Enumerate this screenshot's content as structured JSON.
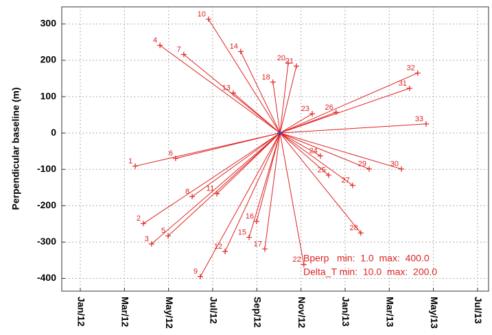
{
  "chart_data": {
    "type": "scatter",
    "y_label": "Perpendicular baseline (m)",
    "x": [
      2.49,
      2.86,
      3.23,
      3.61,
      3.98,
      4.32,
      4.69,
      5.07,
      5.44,
      5.81,
      6.19,
      6.56,
      6.93,
      7.27,
      7.65,
      7.99,
      8.36,
      8.73,
      9.42,
      9.79,
      10.13,
      10.51,
      10.88,
      11.25,
      11.59,
      12.34,
      12.71,
      13.09,
      14.55,
      14.92,
      15.29,
      15.67
    ],
    "values": [
      -91,
      -249,
      -305,
      241,
      -283,
      -70,
      216,
      -175,
      -395,
      313,
      -167,
      -326,
      110,
      224,
      -287,
      -243,
      -319,
      140,
      192,
      184,
      -362,
      53,
      -63,
      -116,
      57,
      -144,
      -275,
      -99,
      -99,
      123,
      165,
      25
    ],
    "point_labels": [
      "1",
      "2",
      "3",
      "4",
      "5",
      "6",
      "7",
      "8",
      "9",
      "10",
      "11",
      "12",
      "13",
      "14",
      "15",
      "16",
      "17",
      "18",
      "20",
      "21",
      "22",
      "23",
      "24",
      "25",
      "26",
      "27",
      "28",
      "29",
      "30",
      "31",
      "32",
      "33"
    ],
    "color": "#e02020",
    "reference": {
      "x": 9.05,
      "y": 0,
      "color": "#2040e0"
    },
    "xlim": [
      -0.84,
      18.5
    ],
    "ylim": [
      -435,
      347
    ],
    "xticks": [
      {
        "value": 0,
        "label": "Jan/12"
      },
      {
        "value": 2,
        "label": "Mar/12"
      },
      {
        "value": 4,
        "label": "May/12"
      },
      {
        "value": 6,
        "label": "Jul/12"
      },
      {
        "value": 8,
        "label": "Sep/12"
      },
      {
        "value": 10,
        "label": "Nov/12"
      },
      {
        "value": 12,
        "label": "Jan/13"
      },
      {
        "value": 14,
        "label": "Mar/13"
      },
      {
        "value": 16,
        "label": "May/13"
      },
      {
        "value": 18,
        "label": "Jul/13"
      }
    ],
    "yticks": [
      -400,
      -300,
      -200,
      -100,
      0,
      100,
      200,
      300
    ],
    "grid": true,
    "annotations": [
      "Bperp   min:  1.0  max:  400.0",
      "Delta_T min:  10.0  max:  200.0"
    ]
  }
}
